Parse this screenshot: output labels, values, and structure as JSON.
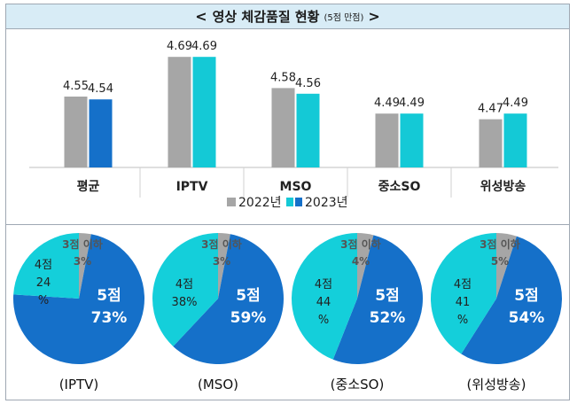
{
  "header": {
    "arrow_left": "<",
    "title": "영상 체감품질 현황",
    "subtitle": "(5점 만점)",
    "arrow_right": ">"
  },
  "colors": {
    "series_2022": "#a6a6a6",
    "series_2023_first": "#1570c9",
    "series_2023_other": "#14c9d6",
    "pie_5": "#1570c9",
    "pie_4": "#14cfda",
    "pie_3": "#a6a6a6"
  },
  "legend": {
    "series_2022": "2022년",
    "series_2023": "2023년"
  },
  "chart_data": [
    {
      "type": "bar",
      "title": "영상 체감품질 현황 (5점 만점)",
      "categories": [
        "평균",
        "IPTV",
        "MSO",
        "중소SO",
        "위성방송"
      ],
      "series": [
        {
          "name": "2022년",
          "values": [
            4.55,
            4.69,
            4.58,
            4.49,
            4.47
          ]
        },
        {
          "name": "2023년",
          "values": [
            4.54,
            4.69,
            4.56,
            4.49,
            4.49
          ]
        }
      ],
      "value_labels": {
        "2022년": [
          "4.55",
          "4.69",
          "4.58",
          "4.49",
          "4.47"
        ],
        "2023년": [
          "4.54",
          "4.69",
          "4.56",
          "4.49",
          "4.49"
        ]
      },
      "ylim": [
        4.3,
        4.75
      ],
      "legend_position": "bottom-center"
    },
    {
      "type": "pie",
      "pies": [
        {
          "caption": "(IPTV)",
          "slices": [
            {
              "label": "5점",
              "value": 73,
              "text": "73%"
            },
            {
              "label": "4점",
              "value": 24,
              "text": "24",
              "suffix": "%"
            },
            {
              "label": "3점 이하",
              "value": 3,
              "text": "3%"
            }
          ]
        },
        {
          "caption": "(MSO)",
          "slices": [
            {
              "label": "5점",
              "value": 59,
              "text": "59%"
            },
            {
              "label": "4점",
              "value": 38,
              "text": "38%"
            },
            {
              "label": "3점 이하",
              "value": 3,
              "text": "3%"
            }
          ]
        },
        {
          "caption": "(중소SO)",
          "slices": [
            {
              "label": "5점",
              "value": 52,
              "text": "52%"
            },
            {
              "label": "4점",
              "value": 44,
              "text": "44",
              "suffix": "%"
            },
            {
              "label": "3점 이하",
              "value": 4,
              "text": "4%"
            }
          ]
        },
        {
          "caption": "(위성방송)",
          "slices": [
            {
              "label": "5점",
              "value": 54,
              "text": "54%"
            },
            {
              "label": "4점",
              "value": 41,
              "text": "41",
              "suffix": "%"
            },
            {
              "label": "3점 이하",
              "value": 5,
              "text": "5%"
            }
          ]
        }
      ]
    }
  ]
}
